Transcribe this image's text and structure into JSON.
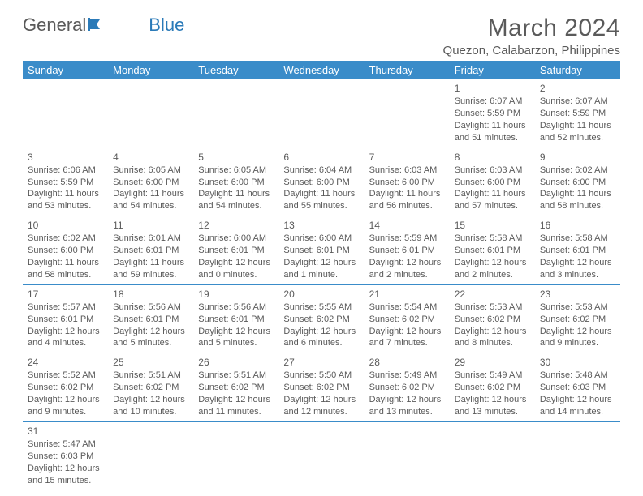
{
  "logo": {
    "word1": "General",
    "word2": "Blue"
  },
  "title": "March 2024",
  "location": "Quezon, Calabarzon, Philippines",
  "header_bg": "#3a8cc9",
  "weekdays": [
    "Sunday",
    "Monday",
    "Tuesday",
    "Wednesday",
    "Thursday",
    "Friday",
    "Saturday"
  ],
  "weeks": [
    [
      null,
      null,
      null,
      null,
      null,
      {
        "n": "1",
        "sr": "Sunrise: 6:07 AM",
        "ss": "Sunset: 5:59 PM",
        "d1": "Daylight: 11 hours",
        "d2": "and 51 minutes."
      },
      {
        "n": "2",
        "sr": "Sunrise: 6:07 AM",
        "ss": "Sunset: 5:59 PM",
        "d1": "Daylight: 11 hours",
        "d2": "and 52 minutes."
      }
    ],
    [
      {
        "n": "3",
        "sr": "Sunrise: 6:06 AM",
        "ss": "Sunset: 5:59 PM",
        "d1": "Daylight: 11 hours",
        "d2": "and 53 minutes."
      },
      {
        "n": "4",
        "sr": "Sunrise: 6:05 AM",
        "ss": "Sunset: 6:00 PM",
        "d1": "Daylight: 11 hours",
        "d2": "and 54 minutes."
      },
      {
        "n": "5",
        "sr": "Sunrise: 6:05 AM",
        "ss": "Sunset: 6:00 PM",
        "d1": "Daylight: 11 hours",
        "d2": "and 54 minutes."
      },
      {
        "n": "6",
        "sr": "Sunrise: 6:04 AM",
        "ss": "Sunset: 6:00 PM",
        "d1": "Daylight: 11 hours",
        "d2": "and 55 minutes."
      },
      {
        "n": "7",
        "sr": "Sunrise: 6:03 AM",
        "ss": "Sunset: 6:00 PM",
        "d1": "Daylight: 11 hours",
        "d2": "and 56 minutes."
      },
      {
        "n": "8",
        "sr": "Sunrise: 6:03 AM",
        "ss": "Sunset: 6:00 PM",
        "d1": "Daylight: 11 hours",
        "d2": "and 57 minutes."
      },
      {
        "n": "9",
        "sr": "Sunrise: 6:02 AM",
        "ss": "Sunset: 6:00 PM",
        "d1": "Daylight: 11 hours",
        "d2": "and 58 minutes."
      }
    ],
    [
      {
        "n": "10",
        "sr": "Sunrise: 6:02 AM",
        "ss": "Sunset: 6:00 PM",
        "d1": "Daylight: 11 hours",
        "d2": "and 58 minutes."
      },
      {
        "n": "11",
        "sr": "Sunrise: 6:01 AM",
        "ss": "Sunset: 6:01 PM",
        "d1": "Daylight: 11 hours",
        "d2": "and 59 minutes."
      },
      {
        "n": "12",
        "sr": "Sunrise: 6:00 AM",
        "ss": "Sunset: 6:01 PM",
        "d1": "Daylight: 12 hours",
        "d2": "and 0 minutes."
      },
      {
        "n": "13",
        "sr": "Sunrise: 6:00 AM",
        "ss": "Sunset: 6:01 PM",
        "d1": "Daylight: 12 hours",
        "d2": "and 1 minute."
      },
      {
        "n": "14",
        "sr": "Sunrise: 5:59 AM",
        "ss": "Sunset: 6:01 PM",
        "d1": "Daylight: 12 hours",
        "d2": "and 2 minutes."
      },
      {
        "n": "15",
        "sr": "Sunrise: 5:58 AM",
        "ss": "Sunset: 6:01 PM",
        "d1": "Daylight: 12 hours",
        "d2": "and 2 minutes."
      },
      {
        "n": "16",
        "sr": "Sunrise: 5:58 AM",
        "ss": "Sunset: 6:01 PM",
        "d1": "Daylight: 12 hours",
        "d2": "and 3 minutes."
      }
    ],
    [
      {
        "n": "17",
        "sr": "Sunrise: 5:57 AM",
        "ss": "Sunset: 6:01 PM",
        "d1": "Daylight: 12 hours",
        "d2": "and 4 minutes."
      },
      {
        "n": "18",
        "sr": "Sunrise: 5:56 AM",
        "ss": "Sunset: 6:01 PM",
        "d1": "Daylight: 12 hours",
        "d2": "and 5 minutes."
      },
      {
        "n": "19",
        "sr": "Sunrise: 5:56 AM",
        "ss": "Sunset: 6:01 PM",
        "d1": "Daylight: 12 hours",
        "d2": "and 5 minutes."
      },
      {
        "n": "20",
        "sr": "Sunrise: 5:55 AM",
        "ss": "Sunset: 6:02 PM",
        "d1": "Daylight: 12 hours",
        "d2": "and 6 minutes."
      },
      {
        "n": "21",
        "sr": "Sunrise: 5:54 AM",
        "ss": "Sunset: 6:02 PM",
        "d1": "Daylight: 12 hours",
        "d2": "and 7 minutes."
      },
      {
        "n": "22",
        "sr": "Sunrise: 5:53 AM",
        "ss": "Sunset: 6:02 PM",
        "d1": "Daylight: 12 hours",
        "d2": "and 8 minutes."
      },
      {
        "n": "23",
        "sr": "Sunrise: 5:53 AM",
        "ss": "Sunset: 6:02 PM",
        "d1": "Daylight: 12 hours",
        "d2": "and 9 minutes."
      }
    ],
    [
      {
        "n": "24",
        "sr": "Sunrise: 5:52 AM",
        "ss": "Sunset: 6:02 PM",
        "d1": "Daylight: 12 hours",
        "d2": "and 9 minutes."
      },
      {
        "n": "25",
        "sr": "Sunrise: 5:51 AM",
        "ss": "Sunset: 6:02 PM",
        "d1": "Daylight: 12 hours",
        "d2": "and 10 minutes."
      },
      {
        "n": "26",
        "sr": "Sunrise: 5:51 AM",
        "ss": "Sunset: 6:02 PM",
        "d1": "Daylight: 12 hours",
        "d2": "and 11 minutes."
      },
      {
        "n": "27",
        "sr": "Sunrise: 5:50 AM",
        "ss": "Sunset: 6:02 PM",
        "d1": "Daylight: 12 hours",
        "d2": "and 12 minutes."
      },
      {
        "n": "28",
        "sr": "Sunrise: 5:49 AM",
        "ss": "Sunset: 6:02 PM",
        "d1": "Daylight: 12 hours",
        "d2": "and 13 minutes."
      },
      {
        "n": "29",
        "sr": "Sunrise: 5:49 AM",
        "ss": "Sunset: 6:02 PM",
        "d1": "Daylight: 12 hours",
        "d2": "and 13 minutes."
      },
      {
        "n": "30",
        "sr": "Sunrise: 5:48 AM",
        "ss": "Sunset: 6:03 PM",
        "d1": "Daylight: 12 hours",
        "d2": "and 14 minutes."
      }
    ],
    [
      {
        "n": "31",
        "sr": "Sunrise: 5:47 AM",
        "ss": "Sunset: 6:03 PM",
        "d1": "Daylight: 12 hours",
        "d2": "and 15 minutes."
      },
      null,
      null,
      null,
      null,
      null,
      null
    ]
  ]
}
